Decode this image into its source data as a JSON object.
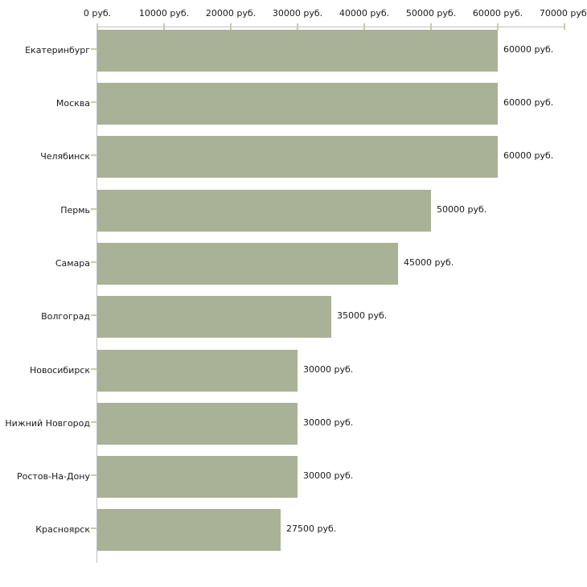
{
  "chart_data": {
    "type": "bar",
    "orientation": "horizontal",
    "title": "",
    "categories": [
      "Екатеринбург",
      "Москва",
      "Челябинск",
      "Пермь",
      "Самара",
      "Волгоград",
      "Новосибирск",
      "Нижний Новгород",
      "Ростов-На-Дону",
      "Красноярск"
    ],
    "values": [
      60000,
      60000,
      60000,
      50000,
      45000,
      35000,
      30000,
      30000,
      30000,
      27500
    ],
    "bar_labels": [
      "60000 руб.",
      "60000 руб.",
      "60000 руб.",
      "50000 руб.",
      "45000 руб.",
      "35000 руб.",
      "30000 руб.",
      "30000 руб.",
      "30000 руб.",
      "27500 руб."
    ],
    "unit": "руб.",
    "x_axis": {
      "position": "top",
      "range": [
        0,
        70000
      ],
      "tick_interval": 10000,
      "tick_values": [
        0,
        10000,
        20000,
        30000,
        40000,
        50000,
        60000,
        70000
      ],
      "tick_labels": [
        "0 руб.",
        "10000 руб.",
        "20000 руб.",
        "30000 руб.",
        "40000 руб.",
        "50000 руб.",
        "60000 руб.",
        "70000 руб."
      ]
    },
    "grid": false,
    "legend": false,
    "colors": {
      "bar": "#a9b297",
      "axis_line": "#c0c0c0",
      "tick": "#cbcba4",
      "text": "#1a1a1a",
      "background": "#ffffff"
    }
  }
}
